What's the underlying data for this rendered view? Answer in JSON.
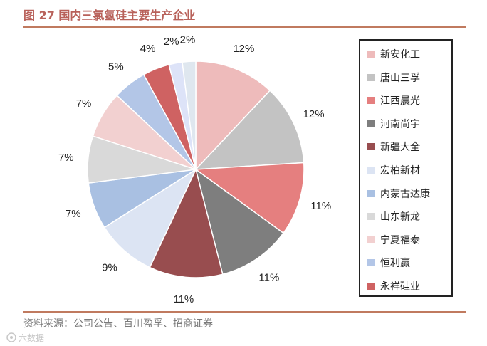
{
  "page": {
    "title": "图 27 国内三氯氢硅主要生产企业",
    "source": "资料来源：公司公告、百川盈孚、招商证券",
    "watermark": "六数据"
  },
  "chart_data": {
    "type": "pie",
    "title": "图 27 国内三氯氢硅主要生产企业",
    "value_unit": "%",
    "legend_position": "right",
    "slices": [
      {
        "label": "新安化工",
        "value": 12,
        "color": "#eebbbb"
      },
      {
        "label": "唐山三孚",
        "value": 12,
        "color": "#c3c3c3"
      },
      {
        "label": "江西晨光",
        "value": 11,
        "color": "#e57f7f"
      },
      {
        "label": "河南尚宇",
        "value": 11,
        "color": "#7e7e7e"
      },
      {
        "label": "新疆大全",
        "value": 11,
        "color": "#984d4f"
      },
      {
        "label": "宏柏新材",
        "value": 9,
        "color": "#dce4f3"
      },
      {
        "label": "内蒙古达康",
        "value": 7,
        "color": "#a9c0e2"
      },
      {
        "label": "山东新龙",
        "value": 7,
        "color": "#d9d9d9"
      },
      {
        "label": "宁夏福泰",
        "value": 7,
        "color": "#f2d0d0"
      },
      {
        "label": "恒利赢",
        "value": 5,
        "color": "#b3c6e7"
      },
      {
        "label": "永祥硅业",
        "value": 4,
        "color": "#cf6262"
      },
      {
        "label": "",
        "value": 2,
        "color": "#dde3f8"
      },
      {
        "label": "",
        "value": 2,
        "color": "#dfe7ef"
      }
    ]
  }
}
